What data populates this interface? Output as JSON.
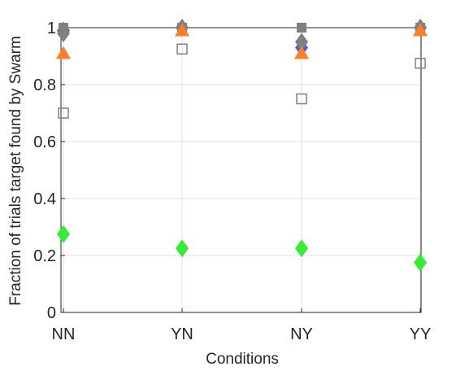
{
  "chart_data": {
    "type": "scatter",
    "title": "",
    "xlabel": "Conditions",
    "ylabel": "Fraction of trials target found by Swarm",
    "categories": [
      "NN",
      "YN",
      "NY",
      "YY"
    ],
    "ylim": [
      0,
      1
    ],
    "yticks": [
      0,
      0.2,
      0.4,
      0.6,
      0.8,
      1
    ],
    "ytick_labels": [
      "0",
      "0.2",
      "0.4",
      "0.6",
      "0.8",
      "1"
    ],
    "grid": true,
    "legend": "none",
    "series": [
      {
        "marker": "circle",
        "color": "#d9534f",
        "values": [
          1.0,
          1.0,
          1.0,
          1.0
        ]
      },
      {
        "marker": "diamond",
        "color": "#5b5bd6",
        "values": [
          0.99,
          1.0,
          0.93,
          1.0
        ]
      },
      {
        "marker": "square-filled",
        "color": "#808080",
        "values": [
          1.0,
          1.0,
          1.0,
          1.0
        ]
      },
      {
        "marker": "diamond",
        "color": "#808080",
        "values": [
          0.98,
          1.0,
          0.95,
          1.0
        ]
      },
      {
        "marker": "triangle",
        "color": "#ff7f27",
        "values": [
          0.91,
          0.99,
          0.91,
          0.99
        ]
      },
      {
        "marker": "square-open",
        "color": "#808080",
        "values": [
          0.7,
          0.925,
          0.75,
          0.875
        ]
      },
      {
        "marker": "diamond",
        "color": "#33ee33",
        "values": [
          0.275,
          0.225,
          0.225,
          0.175
        ]
      }
    ]
  }
}
